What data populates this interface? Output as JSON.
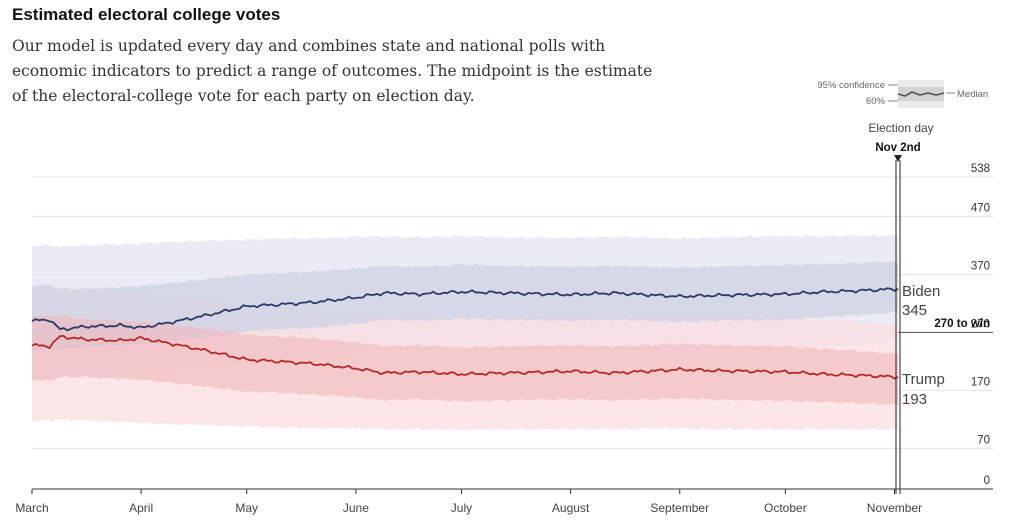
{
  "header": {
    "title": "Estimated electoral college votes",
    "subtitle": "Our model is updated every day and combines state and national polls with economic indicators to predict a range of outcomes. The midpoint is the estimate of the electoral-college vote for each party on election day."
  },
  "legend": {
    "conf95": "95% confidence",
    "conf60": "60%",
    "median": "Median"
  },
  "election_day": {
    "label": "Election day",
    "date": "Nov 2nd"
  },
  "threshold": {
    "value": 270,
    "label": "270 to win"
  },
  "colors": {
    "biden": "#2b3a66",
    "trump": "#b32a26",
    "biden_band95": "#e6e8f2",
    "biden_band60": "#ccd1e3",
    "trump_band95": "#f9dfe0",
    "trump_band60": "#f1b8ba"
  },
  "chart_data": {
    "type": "line",
    "title": "Estimated electoral college votes",
    "xlabel": "",
    "ylabel": "",
    "ylim": [
      0,
      538
    ],
    "yticks": [
      0,
      70,
      170,
      270,
      370,
      470,
      538
    ],
    "x_ticks": [
      "March",
      "April",
      "May",
      "June",
      "July",
      "August",
      "September",
      "October",
      "November"
    ],
    "x_range_days": [
      0,
      246
    ],
    "x_tick_days": [
      0,
      31,
      61,
      92,
      122,
      153,
      184,
      214,
      245
    ],
    "election_day_index": 246,
    "series": [
      {
        "name": "Biden",
        "final_label": "Biden",
        "final_value": "345",
        "x": [
          0,
          5,
          8,
          15,
          25,
          31,
          40,
          50,
          61,
          70,
          80,
          92,
          100,
          110,
          122,
          135,
          153,
          165,
          184,
          195,
          214,
          225,
          235,
          246
        ],
        "median": [
          290,
          292,
          275,
          280,
          282,
          278,
          288,
          300,
          315,
          318,
          322,
          330,
          338,
          336,
          340,
          338,
          335,
          338,
          332,
          334,
          336,
          340,
          342,
          345
        ],
        "lo60": [
          240,
          240,
          240,
          245,
          248,
          250,
          255,
          262,
          272,
          275,
          278,
          285,
          292,
          290,
          294,
          292,
          290,
          292,
          288,
          290,
          292,
          296,
          300,
          305
        ],
        "hi60": [
          350,
          352,
          345,
          345,
          348,
          350,
          355,
          362,
          370,
          372,
          375,
          380,
          385,
          383,
          387,
          385,
          383,
          385,
          382,
          384,
          386,
          388,
          390,
          392
        ],
        "lo95": [
          190,
          190,
          192,
          195,
          198,
          200,
          205,
          212,
          222,
          225,
          228,
          235,
          240,
          240,
          242,
          240,
          240,
          240,
          238,
          240,
          242,
          245,
          248,
          255
        ],
        "hi95": [
          420,
          420,
          418,
          420,
          422,
          424,
          426,
          428,
          430,
          432,
          432,
          435,
          435,
          434,
          436,
          434,
          433,
          435,
          432,
          434,
          436,
          436,
          437,
          437
        ]
      },
      {
        "name": "Trump",
        "final_label": "Trump",
        "final_value": "193",
        "x": [
          0,
          5,
          8,
          15,
          25,
          31,
          40,
          50,
          61,
          70,
          80,
          92,
          100,
          110,
          122,
          135,
          153,
          165,
          184,
          195,
          214,
          225,
          235,
          246
        ],
        "median": [
          248,
          246,
          263,
          258,
          256,
          260,
          250,
          238,
          223,
          220,
          216,
          208,
          200,
          202,
          198,
          200,
          203,
          200,
          206,
          204,
          202,
          198,
          196,
          193
        ],
        "lo60": [
          188,
          186,
          193,
          193,
          190,
          188,
          183,
          176,
          168,
          166,
          163,
          158,
          153,
          155,
          151,
          153,
          155,
          153,
          156,
          154,
          152,
          150,
          148,
          146
        ],
        "hi60": [
          298,
          298,
          298,
          293,
          290,
          288,
          283,
          276,
          266,
          263,
          260,
          253,
          246,
          248,
          244,
          246,
          248,
          246,
          250,
          248,
          246,
          242,
          238,
          233
        ],
        "lo95": [
          118,
          118,
          120,
          118,
          116,
          114,
          112,
          110,
          108,
          106,
          105,
          104,
          103,
          103,
          102,
          103,
          103,
          103,
          104,
          103,
          103,
          103,
          103,
          103
        ],
        "hi95": [
          348,
          348,
          346,
          343,
          340,
          338,
          333,
          326,
          316,
          313,
          310,
          303,
          296,
          298,
          294,
          296,
          298,
          296,
          300,
          298,
          296,
          292,
          288,
          283
        ]
      }
    ]
  }
}
